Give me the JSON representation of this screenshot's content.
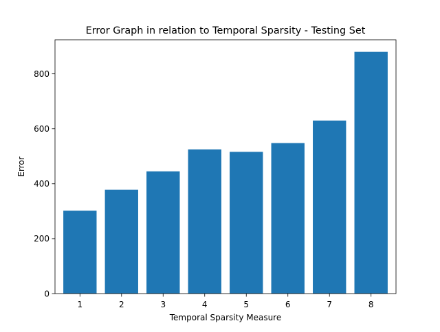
{
  "chart_data": {
    "type": "bar",
    "title": "Error Graph in relation to Temporal Sparsity - Testing Set",
    "xlabel": "Temporal Sparsity Measure",
    "ylabel": "Error",
    "categories": [
      "1",
      "2",
      "3",
      "4",
      "5",
      "6",
      "7",
      "8"
    ],
    "values": [
      302,
      378,
      445,
      525,
      516,
      548,
      630,
      880
    ],
    "ylim": [
      0,
      924
    ],
    "yticks": [
      0,
      200,
      400,
      600,
      800
    ],
    "grid": false,
    "legend": "none",
    "bar_color": "#1f77b4"
  }
}
